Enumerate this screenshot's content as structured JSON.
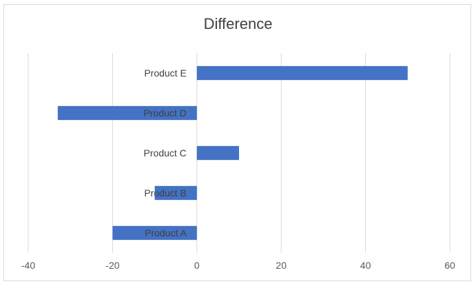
{
  "chart_data": {
    "type": "bar",
    "orientation": "horizontal",
    "title": "Difference",
    "categories": [
      "Product A",
      "Product B",
      "Product C",
      "Product D",
      "Product E"
    ],
    "values": [
      -20,
      -10,
      10,
      -33,
      50
    ],
    "xlim": [
      -40,
      60
    ],
    "xticks": [
      -40,
      -20,
      0,
      20,
      40,
      60
    ],
    "xlabel": "",
    "ylabel": "",
    "grid": true,
    "legend": "none",
    "bar_color": "#4472C4",
    "grid_color": "#d9d9d9"
  }
}
